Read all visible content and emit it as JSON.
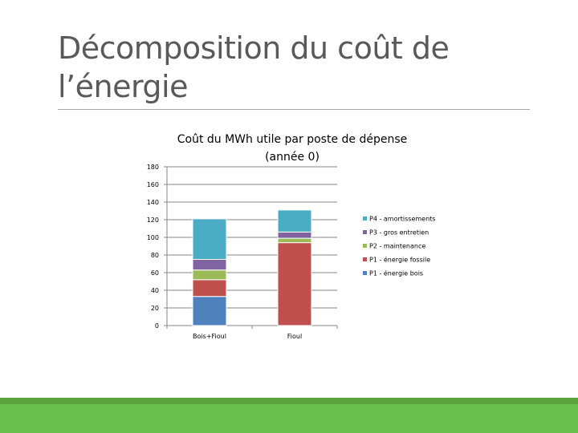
{
  "slide": {
    "title_line1": "Décomposition du coût de",
    "title_line2": "l’énergie",
    "footer_color": "#6abf4b"
  },
  "chart_data": {
    "type": "bar",
    "stacked": true,
    "title_line1": "Coût du MWh utile par poste de dépense",
    "title_line2": "(année 0)",
    "categories": [
      "Bois+Fioul",
      "Fioul"
    ],
    "ylim": [
      0,
      180
    ],
    "yticks": [
      0,
      20,
      40,
      60,
      80,
      100,
      120,
      140,
      160,
      180
    ],
    "grid": true,
    "legend_position": "right",
    "series": [
      {
        "name": "P1 - énergie bois",
        "color": "#4f81bd",
        "values": [
          33,
          0
        ]
      },
      {
        "name": "P1 - énergie fossile",
        "color": "#c0504d",
        "values": [
          19,
          94
        ]
      },
      {
        "name": "P2 - maintenance",
        "color": "#9bbb59",
        "values": [
          11,
          5
        ]
      },
      {
        "name": "P3 - gros entretien",
        "color": "#8064a2",
        "values": [
          12,
          7
        ]
      },
      {
        "name": "P4 - amortissements",
        "color": "#4bacc6",
        "values": [
          46,
          25
        ]
      }
    ]
  }
}
